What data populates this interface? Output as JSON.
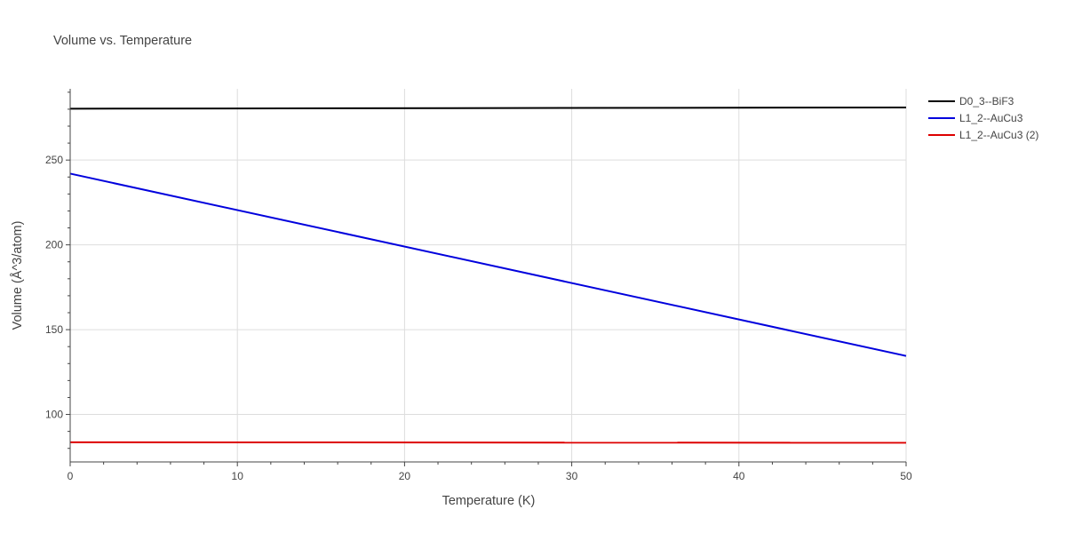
{
  "chart_data": {
    "type": "line",
    "title": "Volume vs. Temperature",
    "xlabel": "Temperature (K)",
    "ylabel": "Volume (Å^3/atom)",
    "xlim": [
      0,
      50
    ],
    "ylim": [
      72,
      292
    ],
    "xticks": [
      0,
      10,
      20,
      30,
      40,
      50
    ],
    "yticks": [
      100,
      150,
      200,
      250
    ],
    "grid": true,
    "legend_position": "top-right",
    "series": [
      {
        "name": "D0_3--BiF3",
        "color": "#000000",
        "x": [
          0,
          50
        ],
        "y": [
          280.3,
          281.0
        ]
      },
      {
        "name": "L1_2--AuCu3",
        "color": "#0000dd",
        "x": [
          0,
          50
        ],
        "y": [
          242.0,
          134.5
        ]
      },
      {
        "name": "L1_2--AuCu3 (2)",
        "color": "#dd0000",
        "x": [
          0,
          50
        ],
        "y": [
          83.6,
          83.3
        ]
      }
    ]
  }
}
